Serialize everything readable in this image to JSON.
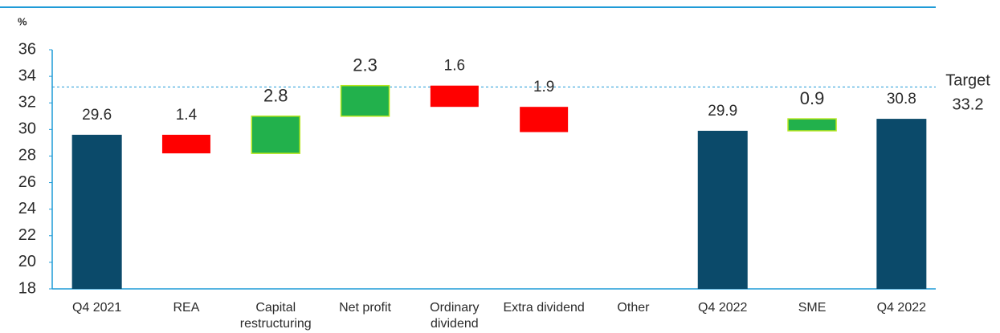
{
  "chart_data": {
    "type": "waterfall",
    "y_label": "%",
    "categories": [
      "Q4 2021",
      "REA",
      "Capital restructuring",
      "Net profit",
      "Ordinary dividend",
      "Extra dividend",
      "Other",
      "Q4 2022",
      "SME",
      "Q4 2022"
    ],
    "measure": [
      "absolute",
      "relative",
      "relative",
      "relative",
      "relative",
      "relative",
      "relative",
      "absolute",
      "relative",
      "absolute"
    ],
    "values": [
      29.6,
      -1.4,
      2.8,
      2.3,
      -1.6,
      -1.9,
      null,
      29.9,
      0.9,
      30.8
    ],
    "value_labels": [
      "29.6",
      "1.4",
      "2.8",
      "2.3",
      "1.6",
      "1.9",
      null,
      "29.9",
      "0.9",
      "30.8"
    ],
    "colors": {
      "total": "#0b4a6a",
      "increase": "#22b14c",
      "decrease": "#ff0000"
    },
    "ylim": [
      18,
      36
    ],
    "yticks": [
      18,
      20,
      22,
      24,
      26,
      28,
      30,
      32,
      34,
      36
    ],
    "target": {
      "label": "Target",
      "value": 33.2
    }
  }
}
